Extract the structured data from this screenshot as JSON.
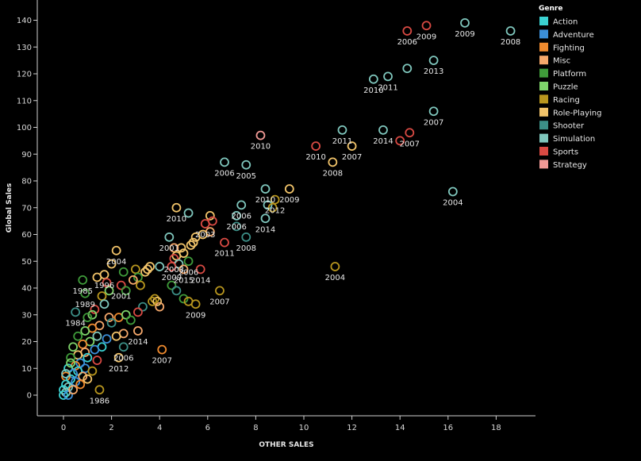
{
  "chart_data": {
    "type": "scatter",
    "xlabel": "OTHER SALES",
    "ylabel": "Global Sales",
    "xlim": [
      -1,
      19.5
    ],
    "ylim": [
      -7,
      145
    ],
    "xticks": [
      0,
      2,
      4,
      6,
      8,
      10,
      12,
      14,
      16,
      18
    ],
    "yticks": [
      0,
      10,
      20,
      30,
      40,
      50,
      60,
      70,
      80,
      90,
      100,
      110,
      120,
      130,
      140
    ],
    "grid": false,
    "legend_placement": "top-right",
    "legend_title": "Genre",
    "series": [
      {
        "name": "Action",
        "color": "#3ad1d1"
      },
      {
        "name": "Adventure",
        "color": "#3b8fd9"
      },
      {
        "name": "Fighting",
        "color": "#ef8a2e"
      },
      {
        "name": "Misc",
        "color": "#f5a86b"
      },
      {
        "name": "Platform",
        "color": "#3f9b3a"
      },
      {
        "name": "Puzzle",
        "color": "#7fd46b"
      },
      {
        "name": "Racing",
        "color": "#b8961e"
      },
      {
        "name": "Role-Playing",
        "color": "#f2c46a"
      },
      {
        "name": "Shooter",
        "color": "#3c8f87"
      },
      {
        "name": "Simulation",
        "color": "#7fc7bd"
      },
      {
        "name": "Sports",
        "color": "#d94a43"
      },
      {
        "name": "Strategy",
        "color": "#f29a96"
      }
    ],
    "points": [
      {
        "x": 18.6,
        "y": 136,
        "genre": "Simulation",
        "label": "2008"
      },
      {
        "x": 16.7,
        "y": 139,
        "genre": "Simulation",
        "label": "2009"
      },
      {
        "x": 15.1,
        "y": 138,
        "genre": "Sports",
        "label": "2009"
      },
      {
        "x": 14.3,
        "y": 136,
        "genre": "Sports",
        "label": "2006"
      },
      {
        "x": 15.4,
        "y": 125,
        "genre": "Simulation",
        "label": "2013"
      },
      {
        "x": 14.3,
        "y": 122,
        "genre": "Simulation",
        "label": ""
      },
      {
        "x": 13.5,
        "y": 119,
        "genre": "Simulation",
        "label": "2011"
      },
      {
        "x": 12.9,
        "y": 118,
        "genre": "Simulation",
        "label": "2010"
      },
      {
        "x": 15.4,
        "y": 106,
        "genre": "Simulation",
        "label": "2007"
      },
      {
        "x": 11.6,
        "y": 99,
        "genre": "Simulation",
        "label": "2011"
      },
      {
        "x": 13.3,
        "y": 99,
        "genre": "Simulation",
        "label": "2014"
      },
      {
        "x": 14.4,
        "y": 98,
        "genre": "Sports",
        "label": "2007"
      },
      {
        "x": 14.0,
        "y": 95,
        "genre": "Sports",
        "label": ""
      },
      {
        "x": 10.5,
        "y": 93,
        "genre": "Sports",
        "label": "2010"
      },
      {
        "x": 12.0,
        "y": 93,
        "genre": "Role-Playing",
        "label": "2007"
      },
      {
        "x": 11.2,
        "y": 87,
        "genre": "Role-Playing",
        "label": "2008"
      },
      {
        "x": 8.2,
        "y": 97,
        "genre": "Strategy",
        "label": "2010"
      },
      {
        "x": 6.7,
        "y": 87,
        "genre": "Simulation",
        "label": "2006"
      },
      {
        "x": 7.6,
        "y": 86,
        "genre": "Simulation",
        "label": "2005"
      },
      {
        "x": 16.2,
        "y": 76,
        "genre": "Simulation",
        "label": "2004"
      },
      {
        "x": 9.4,
        "y": 77,
        "genre": "Role-Playing",
        "label": "2009"
      },
      {
        "x": 8.4,
        "y": 77,
        "genre": "Simulation",
        "label": "2010"
      },
      {
        "x": 8.8,
        "y": 73,
        "genre": "Racing",
        "label": "2012"
      },
      {
        "x": 8.5,
        "y": 71,
        "genre": "Simulation",
        "label": ""
      },
      {
        "x": 8.7,
        "y": 70,
        "genre": "Racing",
        "label": ""
      },
      {
        "x": 4.7,
        "y": 70,
        "genre": "Role-Playing",
        "label": "2010"
      },
      {
        "x": 5.2,
        "y": 68,
        "genre": "Simulation",
        "label": ""
      },
      {
        "x": 7.4,
        "y": 71,
        "genre": "Simulation",
        "label": "2006"
      },
      {
        "x": 7.2,
        "y": 67,
        "genre": "Simulation",
        "label": "2006"
      },
      {
        "x": 6.1,
        "y": 67,
        "genre": "Role-Playing",
        "label": ""
      },
      {
        "x": 6.2,
        "y": 65,
        "genre": "Sports",
        "label": ""
      },
      {
        "x": 8.4,
        "y": 66,
        "genre": "Simulation",
        "label": "2014"
      },
      {
        "x": 7.2,
        "y": 63,
        "genre": "Shooter",
        "label": ""
      },
      {
        "x": 5.9,
        "y": 64,
        "genre": "Sports",
        "label": "2003"
      },
      {
        "x": 7.6,
        "y": 59,
        "genre": "Shooter",
        "label": "2008"
      },
      {
        "x": 6.7,
        "y": 57,
        "genre": "Sports",
        "label": "2011"
      },
      {
        "x": 4.4,
        "y": 59,
        "genre": "Simulation",
        "label": "2001"
      },
      {
        "x": 6.1,
        "y": 61,
        "genre": "Misc",
        "label": ""
      },
      {
        "x": 5.8,
        "y": 60,
        "genre": "Role-Playing",
        "label": ""
      },
      {
        "x": 5.5,
        "y": 59,
        "genre": "Role-Playing",
        "label": ""
      },
      {
        "x": 5.4,
        "y": 57,
        "genre": "Role-Playing",
        "label": ""
      },
      {
        "x": 5.3,
        "y": 56,
        "genre": "Role-Playing",
        "label": ""
      },
      {
        "x": 4.9,
        "y": 55,
        "genre": "Role-Playing",
        "label": ""
      },
      {
        "x": 4.6,
        "y": 55,
        "genre": "Misc",
        "label": ""
      },
      {
        "x": 4.7,
        "y": 52,
        "genre": "Role-Playing",
        "label": ""
      },
      {
        "x": 5.0,
        "y": 53,
        "genre": "Role-Playing",
        "label": ""
      },
      {
        "x": 2.2,
        "y": 54,
        "genre": "Role-Playing",
        "label": "2004"
      },
      {
        "x": 4.6,
        "y": 51,
        "genre": "Sports",
        "label": "2003"
      },
      {
        "x": 4.8,
        "y": 49,
        "genre": "Simulation",
        "label": ""
      },
      {
        "x": 5.2,
        "y": 50,
        "genre": "Platform",
        "label": "2006"
      },
      {
        "x": 4.5,
        "y": 48,
        "genre": "Sports",
        "label": "2009"
      },
      {
        "x": 5.0,
        "y": 47,
        "genre": "Misc",
        "label": "2015"
      },
      {
        "x": 5.7,
        "y": 47,
        "genre": "Sports",
        "label": "2014"
      },
      {
        "x": 11.3,
        "y": 48,
        "genre": "Racing",
        "label": "2004"
      },
      {
        "x": 4.0,
        "y": 48,
        "genre": "Simulation",
        "label": ""
      },
      {
        "x": 3.6,
        "y": 48,
        "genre": "Role-Playing",
        "label": ""
      },
      {
        "x": 3.5,
        "y": 47,
        "genre": "Role-Playing",
        "label": ""
      },
      {
        "x": 3.4,
        "y": 46,
        "genre": "Role-Playing",
        "label": ""
      },
      {
        "x": 3.0,
        "y": 47,
        "genre": "Racing",
        "label": ""
      },
      {
        "x": 3.1,
        "y": 44,
        "genre": "Platform",
        "label": ""
      },
      {
        "x": 2.9,
        "y": 43,
        "genre": "Misc",
        "label": ""
      },
      {
        "x": 3.2,
        "y": 41,
        "genre": "Racing",
        "label": ""
      },
      {
        "x": 2.5,
        "y": 46,
        "genre": "Platform",
        "label": ""
      },
      {
        "x": 2.4,
        "y": 41,
        "genre": "Sports",
        "label": "2001"
      },
      {
        "x": 2.6,
        "y": 39,
        "genre": "Platform",
        "label": ""
      },
      {
        "x": 2.0,
        "y": 49,
        "genre": "Role-Playing",
        "label": ""
      },
      {
        "x": 1.7,
        "y": 45,
        "genre": "Role-Playing",
        "label": "1996"
      },
      {
        "x": 1.4,
        "y": 44,
        "genre": "Role-Playing",
        "label": ""
      },
      {
        "x": 0.8,
        "y": 43,
        "genre": "Platform",
        "label": "1985"
      },
      {
        "x": 1.8,
        "y": 42,
        "genre": "Sports",
        "label": ""
      },
      {
        "x": 1.9,
        "y": 39,
        "genre": "Puzzle",
        "label": ""
      },
      {
        "x": 1.6,
        "y": 37,
        "genre": "Racing",
        "label": ""
      },
      {
        "x": 0.9,
        "y": 38,
        "genre": "Platform",
        "label": "1989"
      },
      {
        "x": 4.5,
        "y": 41,
        "genre": "Platform",
        "label": ""
      },
      {
        "x": 4.7,
        "y": 39,
        "genre": "Shooter",
        "label": ""
      },
      {
        "x": 6.5,
        "y": 39,
        "genre": "Racing",
        "label": "2007"
      },
      {
        "x": 5.0,
        "y": 36,
        "genre": "Platform",
        "label": ""
      },
      {
        "x": 5.2,
        "y": 35,
        "genre": "Racing",
        "label": ""
      },
      {
        "x": 5.5,
        "y": 34,
        "genre": "Racing",
        "label": "2009"
      },
      {
        "x": 3.8,
        "y": 36,
        "genre": "Racing",
        "label": ""
      },
      {
        "x": 3.9,
        "y": 35,
        "genre": "Role-Playing",
        "label": ""
      },
      {
        "x": 3.7,
        "y": 35,
        "genre": "Racing",
        "label": ""
      },
      {
        "x": 4.0,
        "y": 33,
        "genre": "Misc",
        "label": ""
      },
      {
        "x": 3.3,
        "y": 33,
        "genre": "Shooter",
        "label": ""
      },
      {
        "x": 3.1,
        "y": 31,
        "genre": "Sports",
        "label": ""
      },
      {
        "x": 0.5,
        "y": 31,
        "genre": "Shooter",
        "label": "1984"
      },
      {
        "x": 1.7,
        "y": 34,
        "genre": "Simulation",
        "label": ""
      },
      {
        "x": 1.3,
        "y": 32,
        "genre": "Sports",
        "label": ""
      },
      {
        "x": 1.2,
        "y": 30,
        "genre": "Puzzle",
        "label": ""
      },
      {
        "x": 1.0,
        "y": 29,
        "genre": "Platform",
        "label": ""
      },
      {
        "x": 1.9,
        "y": 29,
        "genre": "Misc",
        "label": ""
      },
      {
        "x": 2.3,
        "y": 29,
        "genre": "Fighting",
        "label": ""
      },
      {
        "x": 2.6,
        "y": 30,
        "genre": "Puzzle",
        "label": ""
      },
      {
        "x": 2.8,
        "y": 28,
        "genre": "Platform",
        "label": ""
      },
      {
        "x": 2.0,
        "y": 27,
        "genre": "Shooter",
        "label": ""
      },
      {
        "x": 3.1,
        "y": 24,
        "genre": "Misc",
        "label": "2014"
      },
      {
        "x": 2.5,
        "y": 23,
        "genre": "Misc",
        "label": ""
      },
      {
        "x": 2.2,
        "y": 22,
        "genre": "Role-Playing",
        "label": ""
      },
      {
        "x": 2.5,
        "y": 18,
        "genre": "Shooter",
        "label": "2006"
      },
      {
        "x": 2.3,
        "y": 14,
        "genre": "Role-Playing",
        "label": "2012"
      },
      {
        "x": 4.1,
        "y": 17,
        "genre": "Fighting",
        "label": "2007"
      },
      {
        "x": 1.5,
        "y": 2,
        "genre": "Racing",
        "label": "1986"
      },
      {
        "x": 1.5,
        "y": 26,
        "genre": "Misc",
        "label": ""
      },
      {
        "x": 1.2,
        "y": 25,
        "genre": "Fighting",
        "label": ""
      },
      {
        "x": 0.9,
        "y": 24,
        "genre": "Puzzle",
        "label": ""
      },
      {
        "x": 0.6,
        "y": 22,
        "genre": "Platform",
        "label": ""
      },
      {
        "x": 1.4,
        "y": 22,
        "genre": "Simulation",
        "label": ""
      },
      {
        "x": 1.8,
        "y": 21,
        "genre": "Adventure",
        "label": ""
      },
      {
        "x": 1.1,
        "y": 20,
        "genre": "Puzzle",
        "label": ""
      },
      {
        "x": 0.8,
        "y": 19,
        "genre": "Fighting",
        "label": ""
      },
      {
        "x": 0.4,
        "y": 18,
        "genre": "Puzzle",
        "label": ""
      },
      {
        "x": 1.6,
        "y": 18,
        "genre": "Action",
        "label": ""
      },
      {
        "x": 1.3,
        "y": 17,
        "genre": "Adventure",
        "label": ""
      },
      {
        "x": 0.9,
        "y": 16,
        "genre": "Misc",
        "label": ""
      },
      {
        "x": 0.6,
        "y": 15,
        "genre": "Role-Playing",
        "label": ""
      },
      {
        "x": 0.3,
        "y": 14,
        "genre": "Platform",
        "label": ""
      },
      {
        "x": 1.0,
        "y": 14,
        "genre": "Action",
        "label": ""
      },
      {
        "x": 1.4,
        "y": 13,
        "genre": "Sports",
        "label": ""
      },
      {
        "x": 0.7,
        "y": 12,
        "genre": "Adventure",
        "label": ""
      },
      {
        "x": 0.5,
        "y": 11,
        "genre": "Fighting",
        "label": ""
      },
      {
        "x": 0.2,
        "y": 10,
        "genre": "Action",
        "label": ""
      },
      {
        "x": 0.9,
        "y": 10,
        "genre": "Adventure",
        "label": ""
      },
      {
        "x": 0.6,
        "y": 9,
        "genre": "Action",
        "label": ""
      },
      {
        "x": 0.4,
        "y": 8,
        "genre": "Adventure",
        "label": ""
      },
      {
        "x": 0.1,
        "y": 7,
        "genre": "Fighting",
        "label": ""
      },
      {
        "x": 0.8,
        "y": 7,
        "genre": "Misc",
        "label": ""
      },
      {
        "x": 0.3,
        "y": 6,
        "genre": "Action",
        "label": ""
      },
      {
        "x": 0.5,
        "y": 5,
        "genre": "Adventure",
        "label": ""
      },
      {
        "x": 0.1,
        "y": 4,
        "genre": "Action",
        "label": ""
      },
      {
        "x": 0.2,
        "y": 3,
        "genre": "Simulation",
        "label": ""
      },
      {
        "x": 0.0,
        "y": 2,
        "genre": "Action",
        "label": ""
      },
      {
        "x": 0.1,
        "y": 1,
        "genre": "Simulation",
        "label": ""
      },
      {
        "x": 0.0,
        "y": 0,
        "genre": "Action",
        "label": ""
      },
      {
        "x": 0.2,
        "y": 0,
        "genre": "Adventure",
        "label": ""
      },
      {
        "x": 0.4,
        "y": 2,
        "genre": "Misc",
        "label": ""
      },
      {
        "x": 0.7,
        "y": 4,
        "genre": "Fighting",
        "label": ""
      },
      {
        "x": 1.0,
        "y": 6,
        "genre": "Role-Playing",
        "label": ""
      },
      {
        "x": 1.2,
        "y": 9,
        "genre": "Racing",
        "label": ""
      },
      {
        "x": 0.3,
        "y": 12,
        "genre": "Puzzle",
        "label": ""
      },
      {
        "x": 0.1,
        "y": 8,
        "genre": "Simulation",
        "label": ""
      }
    ]
  }
}
